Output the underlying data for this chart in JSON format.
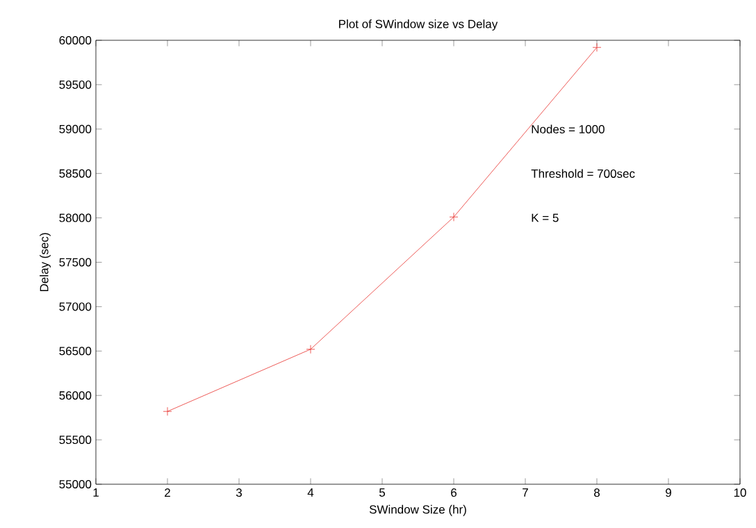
{
  "chart_data": {
    "type": "line",
    "title": "Plot of SWindow size vs Delay",
    "xlabel": "SWindow Size (hr)",
    "ylabel": "Delay (sec)",
    "annotations": [
      "Nodes = 1000",
      "Threshold = 700sec",
      "K = 5"
    ],
    "x": [
      2,
      4,
      6,
      8
    ],
    "series": [
      {
        "color": "#e8302c",
        "values": [
          55820,
          56520,
          58010,
          59920
        ]
      }
    ],
    "xlim": [
      1,
      10
    ],
    "xticks": [
      1,
      2,
      3,
      4,
      5,
      6,
      7,
      8,
      9,
      10
    ],
    "ylim": [
      55000,
      60000
    ],
    "yticks": [
      55000,
      55500,
      56000,
      56500,
      57000,
      57500,
      58000,
      58500,
      59000,
      59500,
      60000
    ],
    "grid": false,
    "marker": "cross",
    "line_style": "solid"
  }
}
